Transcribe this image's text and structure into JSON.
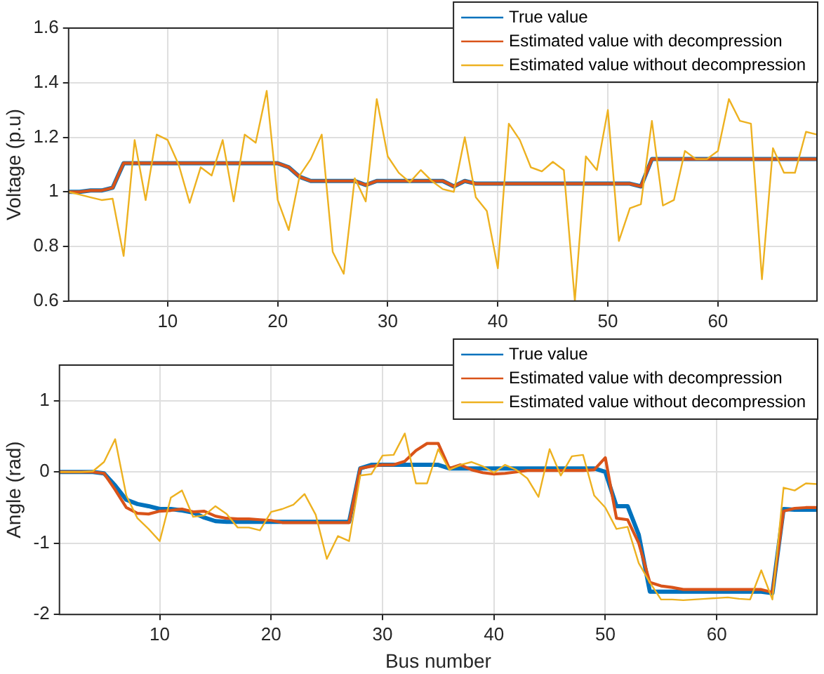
{
  "chart_data": [
    {
      "type": "line",
      "ylabel": "Voltage (p.u)",
      "x": [
        1,
        2,
        3,
        4,
        5,
        6,
        7,
        8,
        9,
        10,
        11,
        12,
        13,
        14,
        15,
        16,
        17,
        18,
        19,
        20,
        21,
        22,
        23,
        24,
        25,
        26,
        27,
        28,
        29,
        30,
        31,
        32,
        33,
        34,
        35,
        36,
        37,
        38,
        39,
        40,
        41,
        42,
        43,
        44,
        45,
        46,
        47,
        48,
        49,
        50,
        51,
        52,
        53,
        54,
        55,
        56,
        57,
        58,
        59,
        60,
        61,
        62,
        63,
        64,
        65,
        66,
        67,
        68,
        69
      ],
      "xlim": [
        1,
        69
      ],
      "xticks": [
        10,
        20,
        30,
        40,
        50,
        60
      ],
      "ylim": [
        0.6,
        1.6
      ],
      "yticks": [
        0.6,
        0.8,
        1,
        1.2,
        1.4,
        1.6
      ],
      "grid": true,
      "legend": "top right",
      "series": [
        {
          "name": "True value",
          "color": "#0072bd",
          "values": [
            1.0,
            1.0,
            1.005,
            1.005,
            1.015,
            1.105,
            1.105,
            1.105,
            1.105,
            1.105,
            1.105,
            1.105,
            1.105,
            1.105,
            1.105,
            1.105,
            1.105,
            1.105,
            1.105,
            1.105,
            1.09,
            1.055,
            1.04,
            1.04,
            1.04,
            1.04,
            1.04,
            1.025,
            1.04,
            1.04,
            1.04,
            1.04,
            1.04,
            1.04,
            1.04,
            1.02,
            1.04,
            1.03,
            1.03,
            1.03,
            1.03,
            1.03,
            1.03,
            1.03,
            1.03,
            1.03,
            1.03,
            1.03,
            1.03,
            1.03,
            1.03,
            1.03,
            1.02,
            1.12,
            1.12,
            1.12,
            1.12,
            1.12,
            1.12,
            1.12,
            1.12,
            1.12,
            1.12,
            1.12,
            1.12,
            1.12,
            1.12,
            1.12,
            1.12
          ]
        },
        {
          "name": "Estimated value with decompression",
          "color": "#d95319",
          "values": [
            1.0,
            1.0,
            1.005,
            1.005,
            1.015,
            1.105,
            1.105,
            1.105,
            1.105,
            1.105,
            1.105,
            1.105,
            1.105,
            1.105,
            1.105,
            1.105,
            1.105,
            1.105,
            1.105,
            1.105,
            1.09,
            1.055,
            1.04,
            1.04,
            1.04,
            1.04,
            1.04,
            1.025,
            1.04,
            1.04,
            1.04,
            1.04,
            1.04,
            1.04,
            1.04,
            1.02,
            1.04,
            1.03,
            1.03,
            1.03,
            1.03,
            1.03,
            1.03,
            1.03,
            1.03,
            1.03,
            1.03,
            1.03,
            1.03,
            1.03,
            1.03,
            1.03,
            1.02,
            1.12,
            1.12,
            1.12,
            1.12,
            1.12,
            1.12,
            1.12,
            1.12,
            1.12,
            1.12,
            1.12,
            1.12,
            1.12,
            1.12,
            1.12,
            1.12
          ]
        },
        {
          "name": "Estimated value without decompression",
          "color": "#edb120",
          "values": [
            1.0,
            0.99,
            0.98,
            0.97,
            0.975,
            0.765,
            1.19,
            0.97,
            1.21,
            1.19,
            1.1,
            0.96,
            1.09,
            1.06,
            1.19,
            0.965,
            1.21,
            1.18,
            1.37,
            0.97,
            0.86,
            1.06,
            1.12,
            1.21,
            0.78,
            0.7,
            1.05,
            0.965,
            1.34,
            1.13,
            1.07,
            1.035,
            1.08,
            1.04,
            1.01,
            1.0,
            1.2,
            0.98,
            0.93,
            0.72,
            1.25,
            1.19,
            1.09,
            1.075,
            1.11,
            1.08,
            0.6,
            1.13,
            1.08,
            1.3,
            0.82,
            0.94,
            0.955,
            1.26,
            0.95,
            0.97,
            1.15,
            1.12,
            1.12,
            1.15,
            1.34,
            1.26,
            1.25,
            0.68,
            1.16,
            1.07,
            1.07,
            1.22,
            1.21
          ]
        }
      ]
    },
    {
      "type": "line",
      "xlabel": "Bus number",
      "ylabel": "Angle (rad)",
      "x": [
        1,
        2,
        3,
        4,
        5,
        6,
        7,
        8,
        9,
        10,
        11,
        12,
        13,
        14,
        15,
        16,
        17,
        18,
        19,
        20,
        21,
        22,
        23,
        24,
        25,
        26,
        27,
        28,
        29,
        30,
        31,
        32,
        33,
        34,
        35,
        36,
        37,
        38,
        39,
        40,
        41,
        42,
        43,
        44,
        45,
        46,
        47,
        48,
        49,
        50,
        51,
        52,
        53,
        54,
        55,
        56,
        57,
        58,
        59,
        60,
        61,
        62,
        63,
        64,
        65,
        66,
        67,
        68,
        69
      ],
      "xlim": [
        1,
        69
      ],
      "xticks": [
        10,
        20,
        30,
        40,
        50,
        60
      ],
      "ylim": [
        -2,
        1.5
      ],
      "yticks": [
        -2,
        -1,
        0,
        1
      ],
      "grid": true,
      "legend": "top right",
      "series": [
        {
          "name": "True value",
          "color": "#0072bd",
          "values": [
            0,
            0,
            0,
            0,
            -0.02,
            -0.19,
            -0.39,
            -0.45,
            -0.48,
            -0.52,
            -0.52,
            -0.54,
            -0.57,
            -0.64,
            -0.69,
            -0.7,
            -0.7,
            -0.7,
            -0.7,
            -0.7,
            -0.7,
            -0.7,
            -0.7,
            -0.7,
            -0.7,
            -0.7,
            -0.7,
            0.05,
            0.1,
            0.1,
            0.1,
            0.1,
            0.1,
            0.1,
            0.1,
            0.05,
            0.05,
            0.05,
            0.05,
            0.05,
            0.05,
            0.05,
            0.05,
            0.05,
            0.05,
            0.05,
            0.05,
            0.05,
            0.05,
            0,
            -0.48,
            -0.48,
            -0.88,
            -1.68,
            -1.68,
            -1.68,
            -1.68,
            -1.68,
            -1.68,
            -1.68,
            -1.68,
            -1.68,
            -1.68,
            -1.68,
            -1.7,
            -0.52,
            -0.53,
            -0.53,
            -0.53
          ]
        },
        {
          "name": "Estimated value with decompression",
          "color": "#d95319",
          "values": [
            0,
            0,
            0,
            0,
            -0.02,
            -0.25,
            -0.5,
            -0.58,
            -0.59,
            -0.55,
            -0.54,
            -0.52,
            -0.56,
            -0.55,
            -0.62,
            -0.65,
            -0.66,
            -0.66,
            -0.67,
            -0.68,
            -0.71,
            -0.71,
            -0.71,
            -0.71,
            -0.71,
            -0.71,
            -0.71,
            0.05,
            0.08,
            0.1,
            0.1,
            0.15,
            0.3,
            0.4,
            0.4,
            0.05,
            0.1,
            0.03,
            -0.01,
            -0.03,
            -0.02,
            0,
            0.02,
            0.02,
            0.02,
            0.02,
            0.02,
            0.02,
            0.03,
            0.2,
            -0.65,
            -0.67,
            -1.0,
            -1.55,
            -1.6,
            -1.62,
            -1.65,
            -1.65,
            -1.65,
            -1.65,
            -1.65,
            -1.65,
            -1.65,
            -1.65,
            -1.69,
            -0.55,
            -0.51,
            -0.5,
            -0.5
          ]
        },
        {
          "name": "Estimated value without decompression",
          "color": "#edb120",
          "values": [
            0,
            0,
            0,
            0.01,
            0.14,
            0.46,
            -0.33,
            -0.65,
            -0.8,
            -0.97,
            -0.36,
            -0.26,
            -0.63,
            -0.61,
            -0.48,
            -0.59,
            -0.78,
            -0.78,
            -0.82,
            -0.56,
            -0.52,
            -0.46,
            -0.31,
            -0.6,
            -1.22,
            -0.9,
            -0.97,
            -0.05,
            -0.03,
            0.23,
            0.24,
            0.54,
            -0.16,
            -0.16,
            0.32,
            0.03,
            0.1,
            0.14,
            0.08,
            -0.01,
            0.1,
            0.03,
            -0.09,
            -0.35,
            0.32,
            -0.05,
            0.22,
            0.24,
            -0.33,
            -0.5,
            -0.8,
            -0.77,
            -1.28,
            -1.55,
            -1.79,
            -1.79,
            -1.8,
            -1.79,
            -1.78,
            -1.77,
            -1.76,
            -1.78,
            -1.79,
            -1.38,
            -1.79,
            -0.22,
            -0.26,
            -0.16,
            -0.17
          ]
        }
      ]
    }
  ]
}
